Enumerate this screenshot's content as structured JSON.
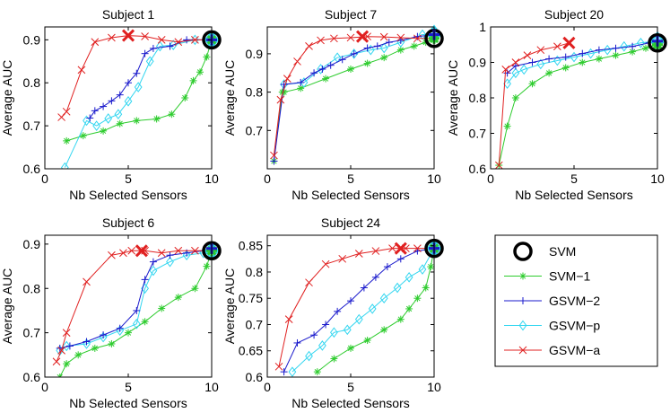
{
  "figure_title": "Average AUC vs number of selected sensors",
  "colors": {
    "SVM": "#000000",
    "SVM-1": "#2ecc2e",
    "GSVM-2": "#1a1acc",
    "GSVM-p": "#33d6f0",
    "GSVM-a": "#e02020",
    "axis": "#000000"
  },
  "legend": {
    "placement": "bottom-right",
    "entries": [
      "SVM",
      "SVM−1",
      "GSVM−2",
      "GSVM−p",
      "GSVM−a"
    ]
  },
  "chart_data": [
    {
      "type": "line",
      "title": "Subject 1",
      "xlabel": "Nb Selected Sensors",
      "ylabel": "Average AUC",
      "xlim": [
        0,
        10
      ],
      "ylim": [
        0.6,
        0.93
      ],
      "xticks": [
        0,
        5,
        10
      ],
      "yticks": [
        0.6,
        0.7,
        0.8,
        0.9
      ],
      "ytick_labels": [
        "0.6",
        "0.7",
        "0.8",
        "0.9"
      ],
      "series": [
        {
          "name": "SVM",
          "x": [
            10
          ],
          "y": [
            0.9
          ]
        },
        {
          "name": "SVM-1",
          "x": [
            1.3,
            2.3,
            3.5,
            4.5,
            5.5,
            6.7,
            7.6,
            8.4,
            8.9,
            9.3,
            9.7,
            10
          ],
          "y": [
            0.665,
            0.677,
            0.688,
            0.705,
            0.712,
            0.716,
            0.727,
            0.765,
            0.805,
            0.825,
            0.86,
            0.9
          ]
        },
        {
          "name": "GSVM-2",
          "x": [
            2.7,
            3.0,
            3.5,
            4.0,
            4.5,
            5.0,
            5.5,
            6.0,
            6.5,
            7.5,
            8.5,
            10
          ],
          "y": [
            0.718,
            0.735,
            0.745,
            0.758,
            0.772,
            0.8,
            0.822,
            0.868,
            0.88,
            0.885,
            0.9,
            0.9
          ]
        },
        {
          "name": "GSVM-p",
          "x": [
            1.2,
            2.5,
            3.1,
            3.8,
            4.4,
            5.0,
            5.6,
            6.3,
            6.9,
            7.7,
            9.0,
            10
          ],
          "y": [
            0.603,
            0.712,
            0.7,
            0.717,
            0.727,
            0.757,
            0.79,
            0.85,
            0.885,
            0.888,
            0.9,
            0.9
          ]
        },
        {
          "name": "GSVM-a",
          "x": [
            1.0,
            1.3,
            2.2,
            3.0,
            4.0,
            5.0,
            6.0,
            7.0,
            8.0,
            9.0,
            10
          ],
          "y": [
            0.72,
            0.733,
            0.83,
            0.895,
            0.905,
            0.91,
            0.908,
            0.9,
            0.895,
            0.9,
            0.9
          ]
        }
      ],
      "highlight": {
        "name": "GSVM-a",
        "x": 5.0,
        "y": 0.91
      }
    },
    {
      "type": "line",
      "title": "Subject 7",
      "xlabel": "Nb Selected Sensors",
      "ylabel": "Average AUC",
      "xlim": [
        0,
        10
      ],
      "ylim": [
        0.6,
        0.97
      ],
      "xticks": [
        0,
        5,
        10
      ],
      "yticks": [
        0.7,
        0.8,
        0.9
      ],
      "ytick_labels": [
        "0.7",
        "0.8",
        "0.9"
      ],
      "series": [
        {
          "name": "SVM",
          "x": [
            10
          ],
          "y": [
            0.94
          ]
        },
        {
          "name": "SVM-1",
          "x": [
            0.4,
            0.9,
            1.0,
            2.0,
            3.5,
            5.0,
            6.0,
            7.0,
            8.0,
            8.8,
            9.5,
            10
          ],
          "y": [
            0.62,
            0.8,
            0.8,
            0.81,
            0.835,
            0.86,
            0.875,
            0.89,
            0.91,
            0.92,
            0.93,
            0.94
          ]
        },
        {
          "name": "GSVM-2",
          "x": [
            0.4,
            1.0,
            2.0,
            2.8,
            3.3,
            3.8,
            4.5,
            5.2,
            6.0,
            6.6,
            7.3,
            8.0,
            9.0,
            10
          ],
          "y": [
            0.62,
            0.82,
            0.825,
            0.85,
            0.86,
            0.87,
            0.885,
            0.9,
            0.915,
            0.92,
            0.93,
            0.935,
            0.945,
            0.95
          ]
        },
        {
          "name": "GSVM-p",
          "x": [
            1.0,
            2.2,
            3.2,
            4.2,
            5.2,
            6.2,
            7.0,
            8.0,
            9.3,
            10
          ],
          "y": [
            0.82,
            0.825,
            0.86,
            0.89,
            0.9,
            0.91,
            0.915,
            0.93,
            0.95,
            0.95
          ]
        },
        {
          "name": "GSVM-a",
          "x": [
            0.4,
            0.8,
            1.2,
            1.8,
            2.5,
            3.2,
            4.0,
            5.0,
            6.0,
            7.0,
            8.0,
            9.0,
            10
          ],
          "y": [
            0.635,
            0.78,
            0.835,
            0.88,
            0.92,
            0.935,
            0.94,
            0.942,
            0.945,
            0.944,
            0.942,
            0.94,
            0.94
          ]
        }
      ],
      "highlight": {
        "name": "GSVM-a",
        "x": 5.7,
        "y": 0.945
      }
    },
    {
      "type": "line",
      "title": "Subject 20",
      "xlabel": "Nb Selected Sensors",
      "ylabel": "Average AUC",
      "xlim": [
        0,
        10
      ],
      "ylim": [
        0.6,
        1.0
      ],
      "xticks": [
        0,
        5,
        10
      ],
      "yticks": [
        0.6,
        0.7,
        0.8,
        0.9,
        1.0
      ],
      "ytick_labels": [
        "0.6",
        "0.7",
        "0.8",
        "0.9",
        "1"
      ],
      "series": [
        {
          "name": "SVM",
          "x": [
            10
          ],
          "y": [
            0.955
          ]
        },
        {
          "name": "SVM-1",
          "x": [
            0.5,
            1.0,
            1.5,
            2.5,
            3.5,
            4.5,
            5.5,
            6.5,
            7.5,
            8.5,
            9.3,
            10
          ],
          "y": [
            0.61,
            0.72,
            0.8,
            0.84,
            0.87,
            0.885,
            0.9,
            0.91,
            0.92,
            0.93,
            0.94,
            0.95
          ]
        },
        {
          "name": "GSVM-2",
          "x": [
            1.0,
            1.5,
            2.5,
            3.5,
            4.5,
            5.5,
            6.5,
            7.5,
            8.5,
            9.5,
            10
          ],
          "y": [
            0.87,
            0.89,
            0.9,
            0.91,
            0.915,
            0.925,
            0.935,
            0.94,
            0.945,
            0.955,
            0.96
          ]
        },
        {
          "name": "GSVM-p",
          "x": [
            1.0,
            1.5,
            2.0,
            3.0,
            4.0,
            5.0,
            6.0,
            7.0,
            8.0,
            9.0,
            10
          ],
          "y": [
            0.84,
            0.87,
            0.88,
            0.895,
            0.905,
            0.915,
            0.925,
            0.935,
            0.945,
            0.955,
            0.96
          ]
        },
        {
          "name": "GSVM-a",
          "x": [
            0.5,
            0.9,
            1.5,
            2.2,
            3.0,
            4.0,
            4.7
          ],
          "y": [
            0.61,
            0.88,
            0.9,
            0.92,
            0.935,
            0.945,
            0.955
          ]
        }
      ],
      "highlight": {
        "name": "GSVM-a",
        "x": 4.7,
        "y": 0.955
      }
    },
    {
      "type": "line",
      "title": "Subject 6",
      "xlabel": "Nb Selected Sensors",
      "ylabel": "Average AUC",
      "xlim": [
        0,
        10
      ],
      "ylim": [
        0.6,
        0.92
      ],
      "xticks": [
        0,
        5,
        10
      ],
      "yticks": [
        0.6,
        0.7,
        0.8,
        0.9
      ],
      "ytick_labels": [
        "0.6",
        "0.7",
        "0.8",
        "0.9"
      ],
      "series": [
        {
          "name": "SVM",
          "x": [
            10
          ],
          "y": [
            0.885
          ]
        },
        {
          "name": "SVM-1",
          "x": [
            0.9,
            1.3,
            2.0,
            3.0,
            4.0,
            5.0,
            6.0,
            7.0,
            8.0,
            9.0,
            9.7,
            10
          ],
          "y": [
            0.6,
            0.63,
            0.65,
            0.665,
            0.675,
            0.7,
            0.725,
            0.755,
            0.78,
            0.8,
            0.85,
            0.885
          ]
        },
        {
          "name": "GSVM-2",
          "x": [
            0.9,
            1.5,
            2.5,
            3.5,
            4.5,
            5.5,
            6.0,
            6.5,
            7.5,
            8.5,
            9.5,
            10
          ],
          "y": [
            0.665,
            0.67,
            0.68,
            0.695,
            0.71,
            0.75,
            0.82,
            0.86,
            0.875,
            0.88,
            0.885,
            0.89
          ]
        },
        {
          "name": "GSVM-p",
          "x": [
            0.9,
            1.3,
            2.5,
            3.5,
            4.5,
            5.5,
            6.0,
            6.5,
            7.5,
            8.5,
            9.5,
            10
          ],
          "y": [
            0.66,
            0.67,
            0.675,
            0.69,
            0.705,
            0.72,
            0.8,
            0.84,
            0.86,
            0.875,
            0.88,
            0.885
          ]
        },
        {
          "name": "GSVM-a",
          "x": [
            0.7,
            1.0,
            1.3,
            2.5,
            4.0,
            4.7,
            5.2,
            6.0,
            7.0,
            8.0,
            9.0,
            10
          ],
          "y": [
            0.635,
            0.66,
            0.7,
            0.815,
            0.875,
            0.88,
            0.885,
            0.885,
            0.88,
            0.885,
            0.885,
            0.885
          ]
        }
      ],
      "highlight": {
        "name": "GSVM-a",
        "x": 5.8,
        "y": 0.885
      }
    },
    {
      "type": "line",
      "title": "Subject 24",
      "xlabel": "Nb Selected Sensors",
      "ylabel": "Average AUC",
      "xlim": [
        0,
        10
      ],
      "ylim": [
        0.6,
        0.87
      ],
      "xticks": [
        0,
        5,
        10
      ],
      "yticks": [
        0.6,
        0.65,
        0.7,
        0.75,
        0.8,
        0.85
      ],
      "ytick_labels": [
        "0.6",
        "0.65",
        "0.7",
        "0.75",
        "0.8",
        "0.85"
      ],
      "series": [
        {
          "name": "SVM",
          "x": [
            10
          ],
          "y": [
            0.845
          ]
        },
        {
          "name": "SVM-1",
          "x": [
            3.0,
            4.0,
            5.0,
            6.0,
            7.0,
            8.0,
            8.5,
            9.0,
            9.5,
            9.8,
            10
          ],
          "y": [
            0.61,
            0.635,
            0.655,
            0.67,
            0.69,
            0.71,
            0.73,
            0.75,
            0.77,
            0.81,
            0.845
          ]
        },
        {
          "name": "GSVM-2",
          "x": [
            1.0,
            1.8,
            2.8,
            3.5,
            4.2,
            5.0,
            5.8,
            6.5,
            7.2,
            8.0,
            9.0,
            10
          ],
          "y": [
            0.61,
            0.665,
            0.68,
            0.7,
            0.725,
            0.745,
            0.77,
            0.79,
            0.81,
            0.825,
            0.84,
            0.845
          ]
        },
        {
          "name": "GSVM-p",
          "x": [
            1.5,
            2.5,
            3.3,
            4.0,
            4.8,
            5.5,
            6.3,
            7.0,
            7.8,
            8.5,
            9.3,
            10
          ],
          "y": [
            0.61,
            0.64,
            0.66,
            0.685,
            0.69,
            0.71,
            0.73,
            0.75,
            0.77,
            0.79,
            0.805,
            0.845
          ]
        },
        {
          "name": "GSVM-a",
          "x": [
            0.7,
            1.3,
            2.5,
            3.5,
            4.5,
            5.5,
            6.5,
            7.5,
            8.3,
            9.0,
            10
          ],
          "y": [
            0.62,
            0.71,
            0.78,
            0.815,
            0.825,
            0.835,
            0.84,
            0.845,
            0.845,
            0.845,
            0.845
          ]
        }
      ],
      "highlight": {
        "name": "GSVM-a",
        "x": 8.0,
        "y": 0.845
      }
    }
  ]
}
